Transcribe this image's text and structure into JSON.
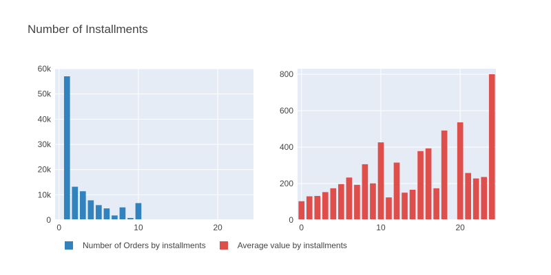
{
  "chart_data": [
    {
      "type": "bar",
      "title": "Number of Installments",
      "x": [
        0,
        1,
        2,
        3,
        4,
        5,
        6,
        7,
        8,
        9,
        10,
        11,
        12,
        13,
        14,
        15,
        16,
        17,
        18,
        19,
        20,
        21,
        22,
        23,
        24
      ],
      "values": [
        3,
        57000,
        13200,
        11400,
        7800,
        5900,
        4600,
        1800,
        5000,
        800,
        6700,
        30,
        250,
        20,
        40,
        100,
        10,
        20,
        50,
        20,
        20,
        20,
        5,
        5,
        30
      ],
      "series": [
        {
          "name": "Number of Orders by installments",
          "color": "#3182bd"
        }
      ],
      "xlim": [
        -0.5,
        24.5
      ],
      "ylim": [
        0,
        60000
      ],
      "x_ticks": [
        0,
        10,
        20
      ],
      "y_ticks": [
        0,
        10000,
        20000,
        30000,
        40000,
        50000,
        60000
      ],
      "y_tick_labels": [
        "0",
        "10k",
        "20k",
        "30k",
        "40k",
        "50k",
        "60k"
      ],
      "grid": true
    },
    {
      "type": "bar",
      "x": [
        0,
        1,
        2,
        3,
        4,
        5,
        6,
        7,
        8,
        9,
        10,
        11,
        12,
        13,
        14,
        15,
        16,
        17,
        18,
        19,
        20,
        21,
        22,
        23,
        24
      ],
      "values": [
        103,
        130,
        132,
        153,
        174,
        197,
        233,
        193,
        306,
        201,
        426,
        124,
        315,
        150,
        166,
        378,
        393,
        174,
        491,
        0,
        536,
        258,
        228,
        236,
        800
      ],
      "series": [
        {
          "name": "Average value by installments",
          "color": "#de4f4c"
        }
      ],
      "xlim": [
        -0.5,
        24.5
      ],
      "ylim": [
        0,
        830
      ],
      "x_ticks": [
        0,
        10,
        20
      ],
      "y_ticks": [
        0,
        200,
        400,
        600,
        800
      ],
      "y_tick_labels": [
        "0",
        "200",
        "400",
        "600",
        "800"
      ],
      "grid": true
    }
  ],
  "legend": {
    "position": "bottom-left",
    "items": [
      {
        "label": "Number of Orders by installments",
        "color": "#3182bd"
      },
      {
        "label": "Average value by installments",
        "color": "#de4f4c"
      }
    ]
  }
}
